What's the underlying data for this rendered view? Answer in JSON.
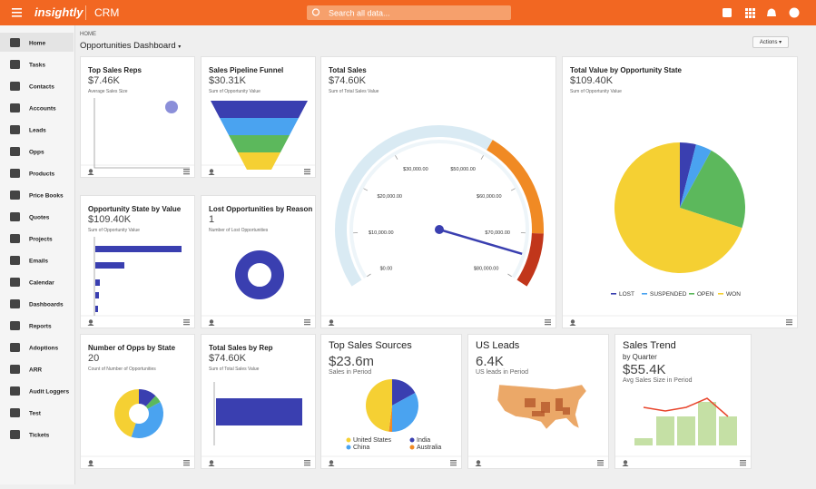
{
  "header": {
    "brand": "insightly",
    "product": "CRM",
    "search_placeholder": "Search all data..."
  },
  "sidebar": [
    "Home",
    "Tasks",
    "Contacts",
    "Accounts",
    "Leads",
    "Opps",
    "Products",
    "Price Books",
    "Quotes",
    "Projects",
    "Emails",
    "Calendar",
    "Dashboards",
    "Reports",
    "Adoptions",
    "ARR",
    "Audit Loggers",
    "Test",
    "Tickets"
  ],
  "page": {
    "breadcrumb": "HOME",
    "title": "Opportunities Dashboard",
    "actions": "Actions"
  },
  "widgets": [
    {
      "title": "Top Sales Reps",
      "value": "$7.46K",
      "subtitle": "Average Sales Size"
    },
    {
      "title": "Sales Pipeline Funnel",
      "value": "$30.31K",
      "subtitle": "Sum of Opportunity Value"
    },
    {
      "title": "Total Sales",
      "value": "$74.60K",
      "subtitle": "Sum of Total Sales Value",
      "chart": {
        "type": "gauge",
        "value": 74600,
        "range": [
          0,
          80000
        ],
        "ticks": [
          {
            "value": 0,
            "label": "$0.00"
          },
          {
            "value": 10000,
            "label": "$10,000.00"
          },
          {
            "value": 20000,
            "label": "$20,000.00"
          },
          {
            "value": 30000,
            "label": "$30,000.00"
          },
          {
            "value": 50000,
            "label": "$50,000.00"
          },
          {
            "value": 60000,
            "label": "$60,000.00"
          },
          {
            "value": 70000,
            "label": "$70,000.00"
          },
          {
            "value": 80000,
            "label": "$80,000.00"
          }
        ],
        "bands": [
          {
            "from": 0,
            "to": 50000,
            "color": "#d9eaf3"
          },
          {
            "from": 50000,
            "to": 70000,
            "color": "#f08a24"
          },
          {
            "from": 70000,
            "to": 80000,
            "color": "#c1361b"
          }
        ]
      }
    },
    {
      "title": "Total Value by Opportunity State",
      "value": "$109.40K",
      "subtitle": "Sum of Opportunity Value",
      "chart": {
        "type": "pie",
        "series": [
          {
            "name": "LOST",
            "color": "#3a3fb0",
            "value": 4
          },
          {
            "name": "SUSPENDED",
            "color": "#4aa3f0",
            "value": 4
          },
          {
            "name": "OPEN",
            "color": "#5cb85c",
            "value": 22
          },
          {
            "name": "WON",
            "color": "#f5d033",
            "value": 70
          }
        ]
      }
    },
    {
      "title": "Opportunity State by Value",
      "value": "$109.40K",
      "subtitle": "Sum of Opportunity Value",
      "chart": {
        "type": "hbar",
        "color": "#3a3fb0",
        "values": [
          95,
          32,
          5,
          4,
          3
        ]
      }
    },
    {
      "title": "Lost Opportunities by Reason",
      "value": "1",
      "subtitle": "Number of Lost Opportunities"
    },
    {
      "title": "Number of Opps by State",
      "value": "20",
      "subtitle": "Count of Number of Opportunities",
      "chart": {
        "type": "donut",
        "series": [
          {
            "color": "#3a3fb0",
            "value": 12
          },
          {
            "color": "#5cb85c",
            "value": 5
          },
          {
            "color": "#4aa3f0",
            "value": 38
          },
          {
            "color": "#f5d033",
            "value": 45
          }
        ]
      }
    },
    {
      "title": "Total Sales by Rep",
      "value": "$74.60K",
      "subtitle": "Sum of Total Sales Value"
    },
    {
      "title": "Top Sales Sources",
      "value": "$23.6m",
      "subtitle": "Sales in Period",
      "chart": {
        "type": "pie",
        "series": [
          {
            "name": "India",
            "color": "#3a3fb0",
            "value": 17
          },
          {
            "name": "China",
            "color": "#4aa3f0",
            "value": 33
          },
          {
            "name": "Australia",
            "color": "#f08a24",
            "value": 2
          },
          {
            "name": "United States",
            "color": "#f5d033",
            "value": 48
          }
        ]
      }
    },
    {
      "title": "US Leads",
      "value": "6.4K",
      "subtitle": "US leads in Period"
    },
    {
      "title": "Sales Trend",
      "caption": "by Quarter",
      "value": "$55.4K",
      "subtitle": "Avg Sales Size in Period",
      "chart": {
        "type": "combo",
        "bar_color": "#c5e0a5",
        "line_color": "#e8452c",
        "bars": [
          2,
          8,
          8,
          12,
          8
        ],
        "line": [
          10.5,
          9.5,
          10.5,
          13,
          8
        ]
      }
    }
  ]
}
